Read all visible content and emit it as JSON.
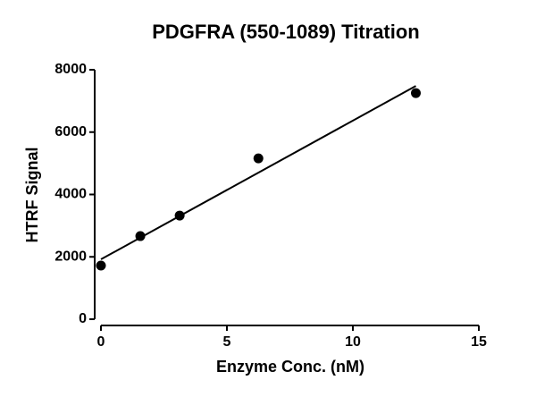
{
  "chart_data": {
    "type": "scatter",
    "title": "PDGFRA (550-1089) Titration",
    "x_label": "Enzyme Conc. (nM)",
    "y_label": "HTRF Signal",
    "x": [
      0,
      1.5625,
      3.125,
      6.25,
      12.5
    ],
    "values": [
      1720,
      2665,
      3324,
      5158,
      7250
    ],
    "color": "#000000",
    "fit_line": {
      "x": [
        0,
        12.5
      ],
      "values": [
        1920,
        7480
      ]
    },
    "xlim": [
      0,
      15
    ],
    "xticks": [
      0,
      5,
      10,
      15
    ],
    "ylim": [
      0,
      8000
    ],
    "yticks": [
      0,
      2000,
      4000,
      6000,
      8000
    ],
    "grid": false
  }
}
